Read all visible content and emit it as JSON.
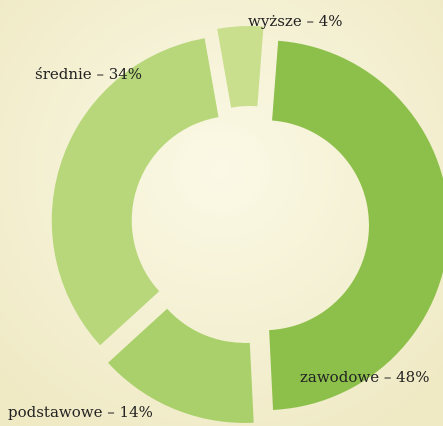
{
  "chart_data": {
    "type": "donut",
    "labels": [
      "wyższe – 4%",
      "zawodowe – 48%",
      "podstawowe – 14%",
      "średnie – 34%"
    ],
    "values": [
      4,
      48,
      14,
      34
    ],
    "colors": [
      "#c9df8e",
      "#8cc04b",
      "#a9d06a",
      "#b7d77a"
    ]
  }
}
